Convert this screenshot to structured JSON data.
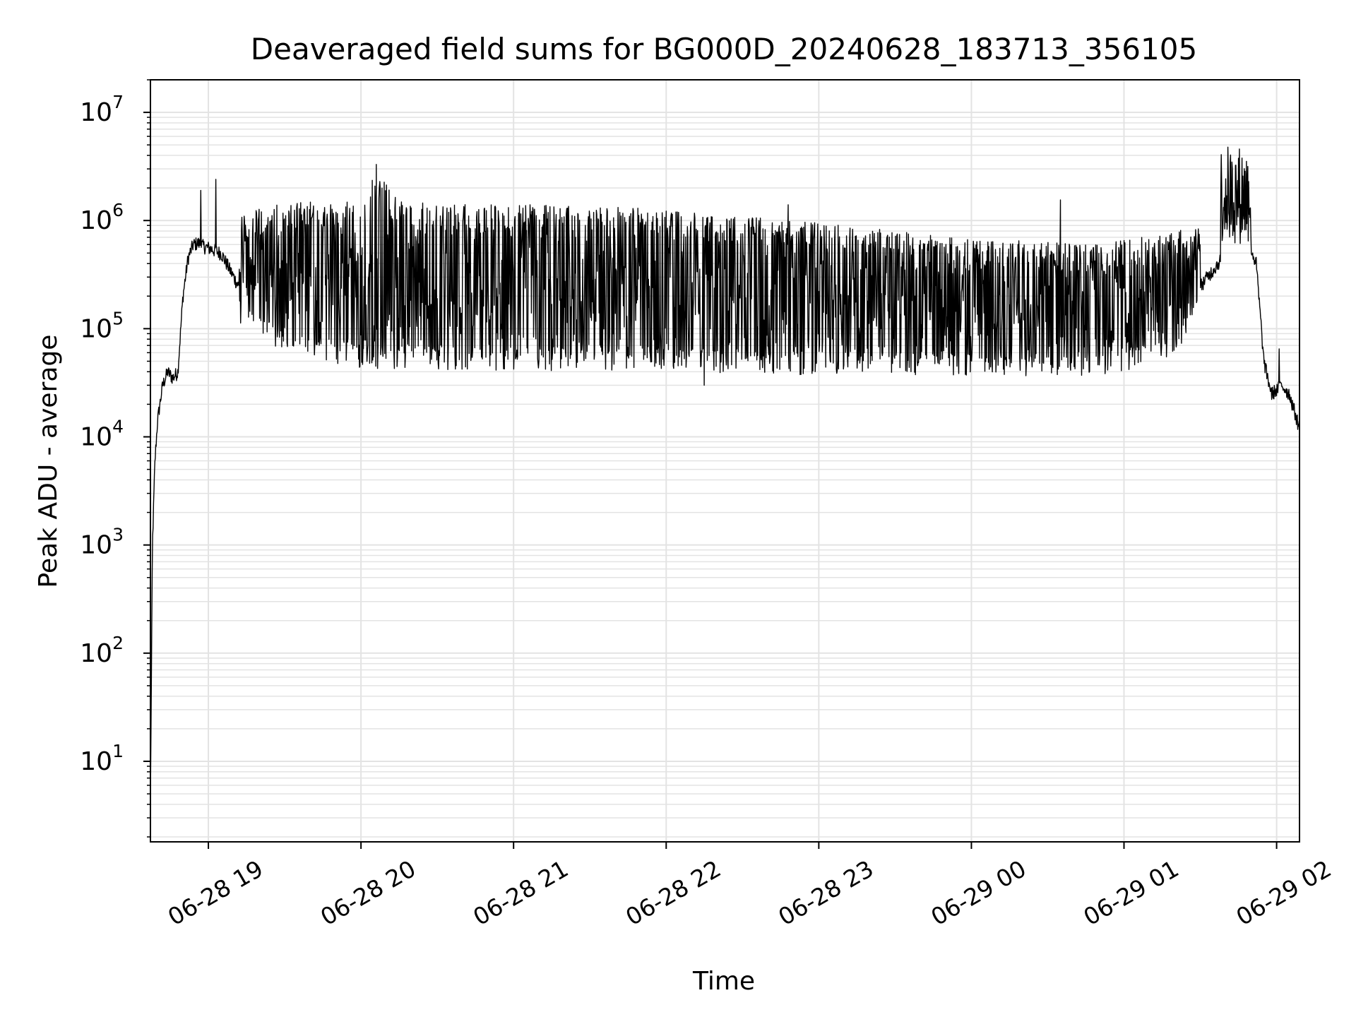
{
  "chart_data": {
    "type": "line",
    "title": "Deaveraged field sums for BG000D_20240628_183713_356105",
    "xlabel": "Time",
    "ylabel": "Peak ADU - average",
    "yscale": "log",
    "ylim": [
      1.8,
      20000000
    ],
    "xlim": [
      "2024-06-28 18:37:13",
      "2024-06-29 02:09:00"
    ],
    "grid": true,
    "line_color": "#000000",
    "grid_color": "#e3e3e3",
    "x_ticks": [
      {
        "t": "2024-06-28 19:00",
        "label": "06-28 19"
      },
      {
        "t": "2024-06-28 20:00",
        "label": "06-28 20"
      },
      {
        "t": "2024-06-28 21:00",
        "label": "06-28 21"
      },
      {
        "t": "2024-06-28 22:00",
        "label": "06-28 22"
      },
      {
        "t": "2024-06-28 23:00",
        "label": "06-28 23"
      },
      {
        "t": "2024-06-29 00:00",
        "label": "06-29 00"
      },
      {
        "t": "2024-06-29 01:00",
        "label": "06-29 01"
      },
      {
        "t": "2024-06-29 02:00",
        "label": "06-29 02"
      }
    ],
    "y_ticks": [
      {
        "value": 10,
        "base": "10",
        "exp": "1"
      },
      {
        "value": 100,
        "base": "10",
        "exp": "2"
      },
      {
        "value": 1000,
        "base": "10",
        "exp": "3"
      },
      {
        "value": 10000,
        "base": "10",
        "exp": "4"
      },
      {
        "value": 100000,
        "base": "10",
        "exp": "5"
      },
      {
        "value": 1000000,
        "base": "10",
        "exp": "6"
      },
      {
        "value": 10000000,
        "base": "10",
        "exp": "7"
      }
    ],
    "series": [
      {
        "x": [
          "2024-06-28 18:37:13",
          "2024-06-28 18:38",
          "2024-06-28 18:39",
          "2024-06-28 18:40",
          "2024-06-28 18:42",
          "2024-06-28 18:44",
          "2024-06-28 18:46",
          "2024-06-28 18:48",
          "2024-06-28 18:50",
          "2024-06-28 18:52",
          "2024-06-28 18:54",
          "2024-06-28 18:56",
          "2024-06-28 18:58",
          "2024-06-28 19:00",
          "2024-06-28 19:05",
          "2024-06-28 19:10",
          "2024-06-28 19:15",
          "2024-06-28 19:20",
          "2024-06-28 19:30",
          "2024-06-28 19:40",
          "2024-06-28 19:50",
          "2024-06-28 20:00",
          "2024-06-28 20:06",
          "2024-06-28 20:10",
          "2024-06-28 20:20",
          "2024-06-28 20:30",
          "2024-06-28 20:40",
          "2024-06-28 20:50",
          "2024-06-28 21:00",
          "2024-06-28 21:15",
          "2024-06-28 21:30",
          "2024-06-28 21:45",
          "2024-06-28 22:00",
          "2024-06-28 22:15",
          "2024-06-28 22:30",
          "2024-06-28 22:45",
          "2024-06-28 23:00",
          "2024-06-28 23:15",
          "2024-06-28 23:30",
          "2024-06-28 23:45",
          "2024-06-29 00:00",
          "2024-06-29 00:15",
          "2024-06-29 00:30",
          "2024-06-29 00:45",
          "2024-06-29 01:00",
          "2024-06-29 01:10",
          "2024-06-29 01:20",
          "2024-06-29 01:30",
          "2024-06-29 01:35",
          "2024-06-29 01:40",
          "2024-06-29 01:42",
          "2024-06-29 01:45",
          "2024-06-29 01:48",
          "2024-06-29 01:52",
          "2024-06-29 01:55",
          "2024-06-29 01:58",
          "2024-06-29 02:02",
          "2024-06-29 02:05",
          "2024-06-29 02:09"
        ],
        "y": [
          4,
          1000,
          6000,
          14000,
          30000,
          40000,
          35000,
          40000,
          200000,
          450000,
          600000,
          620000,
          580000,
          560000,
          500000,
          300000,
          180000,
          250000,
          300000,
          400000,
          350000,
          300000,
          600000,
          350000,
          300000,
          250000,
          250000,
          230000,
          200000,
          180000,
          160000,
          140000,
          130000,
          120000,
          110000,
          100000,
          95000,
          90000,
          85000,
          80000,
          80000,
          75000,
          70000,
          70000,
          75000,
          90000,
          120000,
          250000,
          350000,
          500000,
          2000000,
          800000,
          700000,
          400000,
          50000,
          25000,
          30000,
          25000,
          12000
        ]
      },
      {
        "x": [
          "2024-06-28 19:12",
          "2024-06-28 19:25",
          "2024-06-28 19:40",
          "2024-06-28 19:55",
          "2024-06-28 20:06",
          "2024-06-28 20:15",
          "2024-06-28 20:35",
          "2024-06-28 20:55",
          "2024-06-28 21:10",
          "2024-06-28 21:30",
          "2024-06-28 21:50",
          "2024-06-28 22:10",
          "2024-06-28 22:30",
          "2024-06-28 22:50",
          "2024-06-28 23:10",
          "2024-06-28 23:30",
          "2024-06-28 23:50",
          "2024-06-29 00:10",
          "2024-06-29 00:30",
          "2024-06-29 00:50",
          "2024-06-29 01:05",
          "2024-06-29 01:20",
          "2024-06-29 01:35",
          "2024-06-29 01:45"
        ],
        "y": [
          1100000,
          1400000,
          1500000,
          1500000,
          3000000,
          1500000,
          1450000,
          1400000,
          1400000,
          1350000,
          1300000,
          1200000,
          1100000,
          1000000,
          900000,
          800000,
          700000,
          650000,
          650000,
          600000,
          700000,
          800000,
          900000,
          2000000
        ]
      },
      {
        "x": [
          "2024-06-28 19:12",
          "2024-06-28 19:25",
          "2024-06-28 19:40",
          "2024-06-28 19:55",
          "2024-06-28 20:10",
          "2024-06-28 20:30",
          "2024-06-28 20:50",
          "2024-06-28 21:10",
          "2024-06-28 21:30",
          "2024-06-28 21:50",
          "2024-06-28 22:10",
          "2024-06-28 22:30",
          "2024-06-28 22:50",
          "2024-06-28 23:10",
          "2024-06-28 23:30",
          "2024-06-28 23:50",
          "2024-06-29 00:10",
          "2024-06-29 00:30",
          "2024-06-29 00:50",
          "2024-06-29 01:05",
          "2024-06-29 01:20",
          "2024-06-29 01:30"
        ],
        "y": [
          150000,
          90000,
          70000,
          60000,
          55000,
          55000,
          55000,
          50000,
          55000,
          55000,
          55000,
          50000,
          50000,
          50000,
          50000,
          50000,
          48000,
          47000,
          50000,
          55000,
          70000,
          200000
        ]
      },
      {
        "x": [
          "2024-06-28 18:57",
          "2024-06-28 19:03",
          "2024-06-28 20:06",
          "2024-06-28 22:15",
          "2024-06-28 22:48",
          "2024-06-29 00:35",
          "2024-06-29 01:42",
          "2024-06-29 01:43",
          "2024-06-29 01:46",
          "2024-06-29 02:01"
        ],
        "y": [
          1900000,
          2400000,
          3300000,
          30000,
          1400000,
          1550000,
          9500000,
          5000000,
          7500000,
          65000
        ]
      }
    ]
  }
}
